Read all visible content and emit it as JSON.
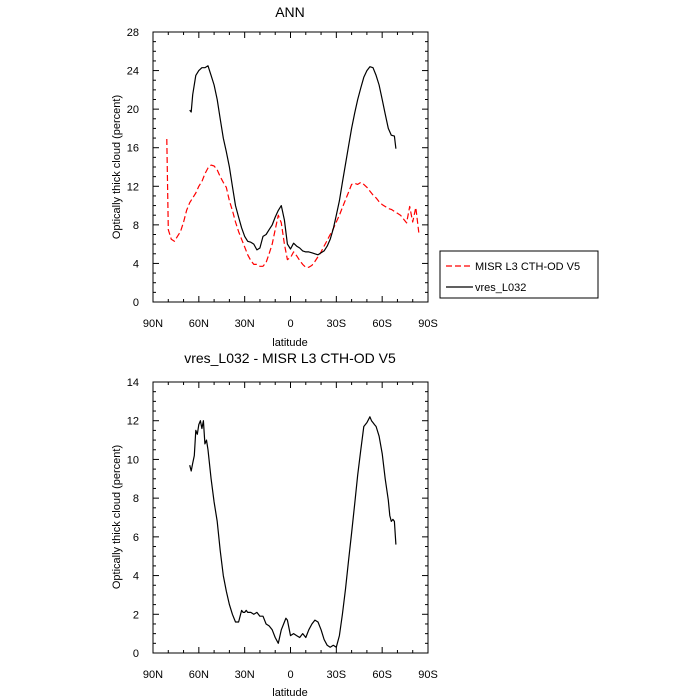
{
  "chart_data": [
    {
      "type": "line",
      "title": "ANN",
      "xlabel": "latitude",
      "ylabel": "Optically thick cloud (percent)",
      "xlim": [
        90,
        -90
      ],
      "ylim": [
        0,
        28
      ],
      "xticks": [
        90,
        60,
        30,
        0,
        -30,
        -60,
        -90
      ],
      "xtick_labels": [
        "90N",
        "60N",
        "30N",
        "0",
        "30S",
        "60S",
        "90S"
      ],
      "yticks": [
        0,
        4,
        8,
        12,
        16,
        20,
        24,
        28
      ],
      "ytick_labels": [
        "0",
        "4",
        "8",
        "12",
        "16",
        "20",
        "24",
        "28"
      ],
      "legend_position": "right, outside plot",
      "series": [
        {
          "name": "MISR L3 CTH-OD V5",
          "color": "#ff0000",
          "dash": "dashed",
          "x": [
            81,
            80,
            78,
            76,
            74,
            72,
            70,
            68,
            66,
            64,
            62,
            60,
            58,
            56,
            54,
            52,
            50,
            48,
            46,
            44,
            42,
            40,
            38,
            36,
            34,
            32,
            30,
            28,
            26,
            24,
            22,
            20,
            18,
            16,
            14,
            12,
            10,
            8,
            6,
            4,
            2,
            0,
            -2,
            -4,
            -6,
            -8,
            -10,
            -12,
            -14,
            -16,
            -18,
            -20,
            -22,
            -24,
            -26,
            -28,
            -30,
            -32,
            -34,
            -36,
            -38,
            -40,
            -42,
            -44,
            -46,
            -48,
            -50,
            -52,
            -54,
            -56,
            -58,
            -60,
            -62,
            -64,
            -66,
            -68,
            -70,
            -72,
            -74,
            -76,
            -78,
            -80,
            -82,
            -84
          ],
          "y": [
            16.9,
            7.5,
            6.5,
            6.3,
            6.8,
            7.3,
            8.3,
            9.5,
            10.3,
            10.8,
            11.3,
            12.0,
            12.5,
            13.3,
            13.9,
            14.2,
            14.1,
            13.7,
            13.0,
            12.4,
            11.9,
            10.5,
            9.5,
            8.3,
            7.3,
            6.5,
            5.7,
            4.9,
            4.3,
            3.9,
            3.9,
            3.7,
            3.7,
            4.1,
            5.0,
            6.0,
            7.5,
            9.0,
            8.2,
            6.0,
            4.4,
            4.6,
            5.2,
            4.8,
            4.3,
            3.9,
            3.6,
            3.6,
            3.8,
            4.2,
            4.7,
            5.2,
            5.8,
            6.4,
            7.0,
            7.6,
            8.3,
            9.0,
            9.8,
            10.6,
            11.4,
            12.2,
            12.3,
            12.2,
            12.4,
            12.2,
            11.9,
            11.5,
            11.1,
            10.8,
            10.4,
            10.1,
            9.9,
            9.7,
            9.6,
            9.4,
            9.2,
            9.0,
            8.6,
            8.2,
            9.9,
            8.3,
            9.8,
            7.2
          ]
        },
        {
          "name": "vres_L032",
          "color": "#000000",
          "dash": "solid",
          "x": [
            66,
            65,
            64,
            62,
            60,
            58,
            56,
            54,
            52,
            50,
            48,
            46,
            44,
            42,
            40,
            38,
            36,
            34,
            32,
            30,
            28,
            26,
            24,
            22,
            20,
            18,
            16,
            14,
            12,
            10,
            8,
            6,
            4,
            2,
            0,
            -2,
            -4,
            -6,
            -8,
            -10,
            -12,
            -14,
            -16,
            -18,
            -20,
            -22,
            -24,
            -26,
            -28,
            -30,
            -32,
            -34,
            -36,
            -38,
            -40,
            -42,
            -44,
            -46,
            -48,
            -50,
            -52,
            -54,
            -56,
            -58,
            -60,
            -62,
            -64,
            -66,
            -68,
            -69
          ],
          "y": [
            19.9,
            19.7,
            21.5,
            23.5,
            24.0,
            24.3,
            24.3,
            24.5,
            23.5,
            22.5,
            21.0,
            19.0,
            17.0,
            15.6,
            14.0,
            12.0,
            10.0,
            8.8,
            7.7,
            6.8,
            6.3,
            6.2,
            6.0,
            5.4,
            5.6,
            6.8,
            7.0,
            7.5,
            8.0,
            8.8,
            9.5,
            10.0,
            8.5,
            6.0,
            5.5,
            6.1,
            5.8,
            5.6,
            5.3,
            5.2,
            5.2,
            5.1,
            5.0,
            4.9,
            5.1,
            5.3,
            5.8,
            6.5,
            7.6,
            9.0,
            10.5,
            12.4,
            14.3,
            16.2,
            18.0,
            19.6,
            21.0,
            22.2,
            23.3,
            24.0,
            24.4,
            24.3,
            23.5,
            22.5,
            21.0,
            19.5,
            18.0,
            17.3,
            17.2,
            15.9
          ]
        }
      ]
    },
    {
      "type": "line",
      "title": "vres_L032 - MISR L3 CTH-OD V5",
      "xlabel": "latitude",
      "ylabel": "Optically thick cloud (percent)",
      "xlim": [
        90,
        -90
      ],
      "ylim": [
        0,
        14
      ],
      "xticks": [
        90,
        60,
        30,
        0,
        -30,
        -60,
        -90
      ],
      "xtick_labels": [
        "90N",
        "60N",
        "30N",
        "0",
        "30S",
        "60S",
        "90S"
      ],
      "yticks": [
        0,
        2,
        4,
        6,
        8,
        10,
        12,
        14
      ],
      "ytick_labels": [
        "0",
        "2",
        "4",
        "6",
        "8",
        "10",
        "12",
        "14"
      ],
      "series": [
        {
          "color": "#000000",
          "dash": "solid",
          "x": [
            66,
            65,
            64,
            63,
            62,
            61,
            60,
            59,
            58,
            57,
            56,
            55,
            54,
            52,
            50,
            48,
            46,
            44,
            42,
            40,
            38,
            36,
            34,
            32,
            31,
            30,
            29,
            28,
            26,
            24,
            22,
            20,
            18,
            16,
            14,
            12,
            10,
            8,
            6,
            4,
            3,
            2,
            0,
            -2,
            -4,
            -6,
            -8,
            -10,
            -12,
            -14,
            -16,
            -18,
            -20,
            -22,
            -24,
            -26,
            -28,
            -30,
            -32,
            -34,
            -36,
            -38,
            -40,
            -42,
            -44,
            -46,
            -48,
            -50,
            -52,
            -53,
            -54,
            -55,
            -56,
            -58,
            -60,
            -62,
            -64,
            -65,
            -66,
            -67,
            -68,
            -69
          ],
          "y": [
            9.7,
            9.4,
            9.8,
            10.2,
            11.5,
            11.3,
            11.8,
            12.0,
            11.6,
            12.0,
            10.8,
            11.0,
            10.5,
            9.0,
            7.8,
            6.8,
            5.3,
            4.0,
            3.2,
            2.5,
            2.0,
            1.6,
            1.6,
            2.2,
            2.1,
            2.1,
            2.2,
            2.1,
            2.1,
            2.0,
            2.1,
            1.9,
            1.9,
            1.5,
            1.4,
            1.2,
            0.8,
            0.5,
            1.2,
            1.6,
            1.8,
            1.7,
            0.9,
            1.0,
            0.9,
            0.8,
            1.0,
            0.8,
            1.2,
            1.5,
            1.7,
            1.6,
            1.2,
            0.7,
            0.4,
            0.3,
            0.4,
            0.3,
            0.9,
            2.0,
            3.3,
            4.8,
            6.2,
            7.7,
            9.2,
            10.5,
            11.7,
            11.9,
            12.2,
            12.0,
            11.9,
            11.8,
            11.7,
            11.2,
            10.3,
            9.0,
            7.9,
            7.1,
            6.8,
            6.9,
            6.8,
            5.6
          ]
        }
      ]
    }
  ]
}
